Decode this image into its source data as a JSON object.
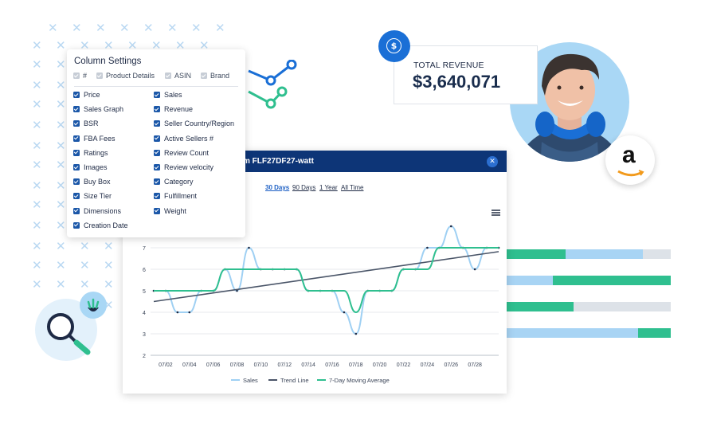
{
  "column_settings": {
    "title": "Column Settings",
    "top_options": [
      {
        "label": "#",
        "checked": true,
        "disabled": true
      },
      {
        "label": "Product Details",
        "checked": true,
        "disabled": true
      },
      {
        "label": "ASIN",
        "checked": true,
        "disabled": true
      },
      {
        "label": "Brand",
        "checked": true,
        "disabled": true
      }
    ],
    "left_options": [
      "Price",
      "Sales Graph",
      "BSR",
      "FBA Fees",
      "Ratings",
      "Images",
      "Buy Box",
      "Size Tier",
      "Dimensions",
      "Creation Date"
    ],
    "right_options": [
      "Sales",
      "Revenue",
      "Seller Country/Region",
      "Active Sellers #",
      "Review Count",
      "Review velocity",
      "Category",
      "Fulfillment",
      "Weight"
    ]
  },
  "chart_window": {
    "title": "m FLF27DF27-watt",
    "close_icon": "close-icon",
    "ranges": [
      "30 Days",
      "90 Days",
      "1 Year",
      "All Time"
    ],
    "active_range": "30 Days"
  },
  "revenue": {
    "label": "TOTAL REVENUE",
    "value": "$3,640,071",
    "icon": "dollar-icon"
  },
  "colors": {
    "navy": "#0d3577",
    "blue": "#1a6fd6",
    "green": "#2fbf8f",
    "light_blue": "#a8d4f4",
    "gray": "#dde2e8"
  },
  "chart_data": {
    "type": "line",
    "x_ticks": [
      "07/02",
      "07/04",
      "07/06",
      "07/08",
      "07/10",
      "07/12",
      "07/14",
      "07/16",
      "07/18",
      "07/20",
      "07/22",
      "07/24",
      "07/26",
      "07/28"
    ],
    "y_ticks": [
      2,
      3,
      4,
      5,
      6,
      7
    ],
    "ylim": [
      2,
      8
    ],
    "x_days": [
      1,
      2,
      3,
      4,
      5,
      6,
      7,
      8,
      9,
      10,
      11,
      12,
      13,
      14,
      15,
      16,
      17,
      18,
      19,
      20,
      21,
      22,
      23,
      24,
      25,
      26,
      27,
      28,
      29,
      30
    ],
    "series": [
      {
        "name": "Sales",
        "values": [
          5,
          5,
          4,
          4,
          5,
          5,
          6,
          5,
          7,
          6,
          6,
          6,
          6,
          5,
          5,
          5,
          4,
          3,
          5,
          5,
          5,
          6,
          6,
          7,
          7,
          8,
          7,
          6,
          7,
          7
        ]
      },
      {
        "name": "Trend Line",
        "values": [
          4.5,
          4.58,
          4.66,
          4.74,
          4.82,
          4.9,
          4.98,
          5.06,
          5.14,
          5.22,
          5.3,
          5.38,
          5.46,
          5.54,
          5.62,
          5.7,
          5.78,
          5.86,
          5.94,
          6.02,
          6.1,
          6.18,
          6.26,
          6.34,
          6.42,
          6.5,
          6.58,
          6.66,
          6.74,
          6.82
        ]
      },
      {
        "name": "7-Day Moving Average",
        "values": [
          5,
          5,
          5,
          5,
          5,
          5,
          6,
          6,
          6,
          6,
          6,
          6,
          6,
          5,
          5,
          5,
          5,
          4,
          5,
          5,
          5,
          6,
          6,
          6,
          7,
          7,
          7,
          7,
          7,
          7
        ]
      }
    ],
    "legend": [
      "Sales",
      "Trend Line",
      "7-Day Moving Average"
    ]
  },
  "bars": [
    [
      {
        "color": "green",
        "value": 0.36
      },
      {
        "color": "light_blue",
        "value": 0.47
      },
      {
        "color": "gray",
        "value": 0.17
      }
    ],
    [
      {
        "color": "light_blue",
        "value": 0.28
      },
      {
        "color": "green",
        "value": 0.72
      }
    ],
    [
      {
        "color": "green",
        "value": 0.41
      },
      {
        "color": "gray",
        "value": 0.59
      }
    ],
    [
      {
        "color": "light_blue",
        "value": 0.8
      },
      {
        "color": "green",
        "value": 0.2
      }
    ]
  ],
  "avatar": {
    "badge_icon": "amazon-icon"
  }
}
